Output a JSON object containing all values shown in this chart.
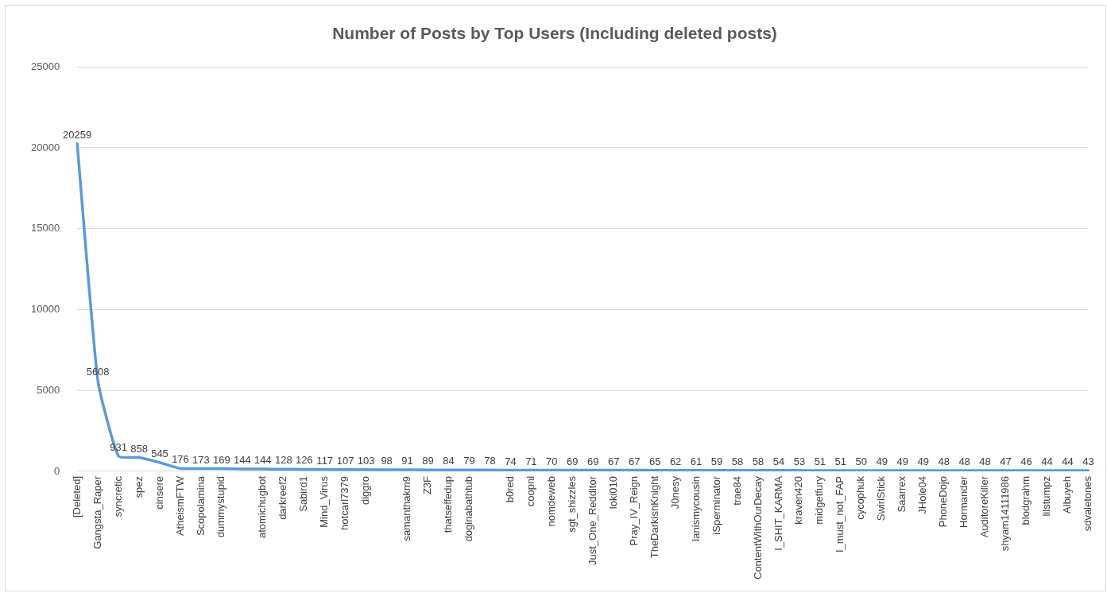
{
  "chart_data": {
    "type": "line",
    "title": "Number of Posts by Top Users (Including deleted posts)",
    "categories": [
      "[Deleted]",
      "Gangsta_Raper",
      "syncretic",
      "spez",
      "cinsere",
      "AtheismFTW",
      "Scopolamina",
      "dummystupid",
      null,
      "atomichugbot",
      "darkreef2",
      "Sabird1",
      "Mind_Virus",
      "hotcarl7379",
      "diggro",
      null,
      "samanthakm9",
      "Z3F",
      "thatseffedup",
      "doginabathtub",
      null,
      "b0red",
      "coopnl",
      "nomdeweb",
      "sgt_shizzles",
      "Just_One_Redditor",
      "loki010",
      "Pray_IV_Reign",
      "TheDarkishKnight",
      "J0nesy",
      "Ianismycousin",
      "iSperminator",
      "trae84",
      "ContentWithOurDecay",
      "I_SHIT_KARMA",
      "kraven420",
      "midgetfury",
      "I_must_not_FAP",
      "cycophuk",
      "SwirlStick",
      "Saarrex",
      "JHole04",
      "PhoneDojo",
      "Hormander",
      "AuditoreKiller",
      "shyam14111986",
      "blodgrahm",
      "lilstumpz",
      "Albuyeh",
      "sdvaletones"
    ],
    "values": [
      20259,
      5608,
      931,
      858,
      545,
      176,
      173,
      169,
      144,
      144,
      128,
      126,
      117,
      107,
      103,
      98,
      91,
      89,
      84,
      79,
      78,
      74,
      71,
      70,
      69,
      69,
      67,
      67,
      65,
      62,
      61,
      59,
      58,
      58,
      54,
      53,
      51,
      51,
      50,
      49,
      49,
      49,
      48,
      48,
      48,
      47,
      46,
      44,
      44,
      43
    ],
    "color": "#5b9bd5",
    "ylim": [
      0,
      25000
    ],
    "yticks": [
      0,
      5000,
      10000,
      15000,
      20000,
      25000
    ],
    "grid": "y",
    "data_labels": true,
    "marker": "none",
    "line_style": "solid",
    "legend": false
  }
}
